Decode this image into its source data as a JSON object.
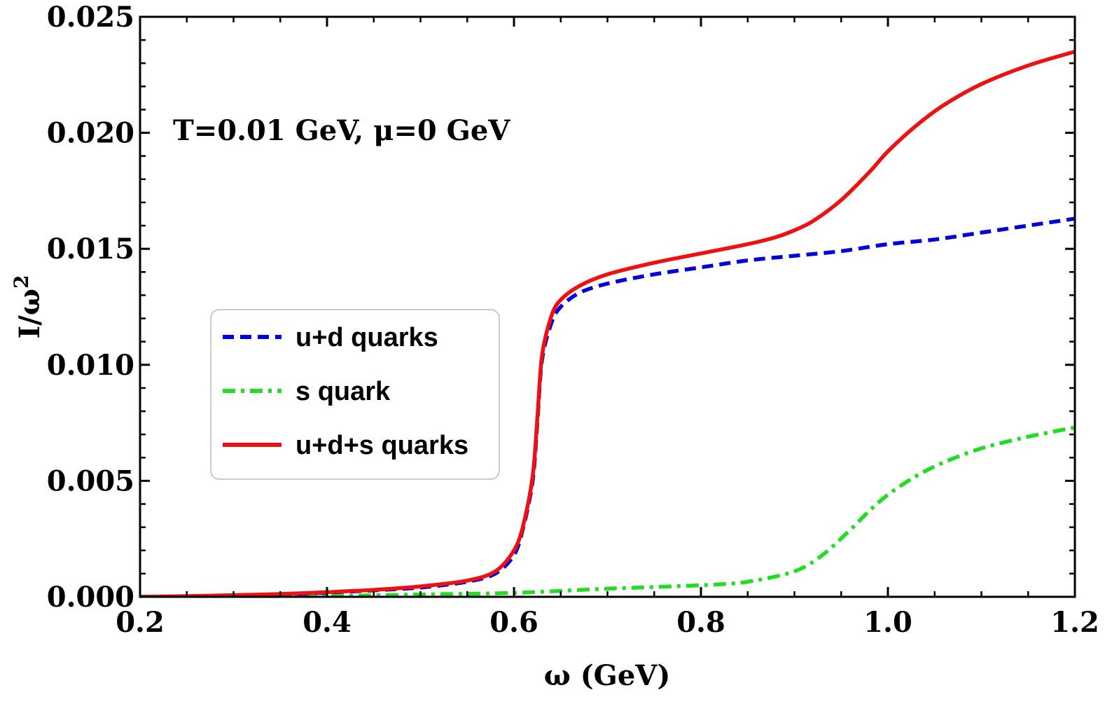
{
  "chart_data": {
    "type": "line",
    "title": "",
    "xlabel": "ω (GeV)",
    "ylabel_base": "I/ω",
    "ylabel_sup": "2",
    "xlim": [
      0.2,
      1.2
    ],
    "ylim": [
      0.0,
      0.025
    ],
    "x_ticks": [
      0.2,
      0.4,
      0.6,
      0.8,
      1.0,
      1.2
    ],
    "x_tick_labels": [
      "0.2",
      "0.4",
      "0.6",
      "0.8",
      "1.0",
      "1.2"
    ],
    "y_ticks": [
      0.0,
      0.005,
      0.01,
      0.015,
      0.02,
      0.025
    ],
    "y_tick_labels": [
      "0.000",
      "0.005",
      "0.010",
      "0.015",
      "0.020",
      "0.025"
    ],
    "annotation": "T=0.01 GeV, μ=0 GeV",
    "grid": false,
    "legend_position": "center-left",
    "series": [
      {
        "name": "u+d quarks",
        "color": "#0000dd",
        "style": "dashed",
        "x": [
          0.2,
          0.25,
          0.3,
          0.35,
          0.4,
          0.45,
          0.5,
          0.55,
          0.58,
          0.6,
          0.61,
          0.62,
          0.625,
          0.63,
          0.64,
          0.65,
          0.67,
          0.7,
          0.75,
          0.8,
          0.85,
          0.9,
          0.95,
          1.0,
          1.05,
          1.1,
          1.15,
          1.2
        ],
        "y": [
          0.0,
          2e-05,
          6e-05,
          0.0001,
          0.00018,
          0.00028,
          0.0004,
          0.00065,
          0.001,
          0.0018,
          0.003,
          0.005,
          0.0075,
          0.0102,
          0.0118,
          0.0125,
          0.0131,
          0.0135,
          0.0139,
          0.0142,
          0.0145,
          0.0147,
          0.0149,
          0.0152,
          0.0154,
          0.0157,
          0.016,
          0.0163
        ]
      },
      {
        "name": "s quark",
        "color": "#22dd22",
        "style": "dashdot",
        "x": [
          0.2,
          0.3,
          0.4,
          0.5,
          0.6,
          0.7,
          0.8,
          0.85,
          0.9,
          0.93,
          0.96,
          0.98,
          1.0,
          1.03,
          1.06,
          1.1,
          1.15,
          1.2
        ],
        "y": [
          0.0,
          1e-05,
          3e-05,
          0.0001,
          0.00017,
          0.00035,
          0.0005,
          0.00065,
          0.0011,
          0.0018,
          0.0029,
          0.0037,
          0.0044,
          0.0052,
          0.0058,
          0.0064,
          0.0069,
          0.0073
        ]
      },
      {
        "name": "u+d+s quarks",
        "color": "#ee1111",
        "style": "solid",
        "x": [
          0.2,
          0.25,
          0.3,
          0.35,
          0.4,
          0.45,
          0.5,
          0.55,
          0.58,
          0.6,
          0.61,
          0.62,
          0.625,
          0.63,
          0.64,
          0.65,
          0.67,
          0.7,
          0.75,
          0.8,
          0.85,
          0.88,
          0.9,
          0.92,
          0.95,
          0.98,
          1.0,
          1.03,
          1.06,
          1.1,
          1.15,
          1.2
        ],
        "y": [
          0.0,
          3e-05,
          7e-05,
          0.00012,
          0.0002,
          0.0003,
          0.00045,
          0.0007,
          0.0011,
          0.002,
          0.0031,
          0.0052,
          0.0077,
          0.0104,
          0.0121,
          0.0128,
          0.0134,
          0.0139,
          0.0144,
          0.0148,
          0.0152,
          0.0155,
          0.0158,
          0.0162,
          0.0171,
          0.0183,
          0.0192,
          0.0203,
          0.0212,
          0.0221,
          0.0229,
          0.0235
        ]
      }
    ]
  }
}
